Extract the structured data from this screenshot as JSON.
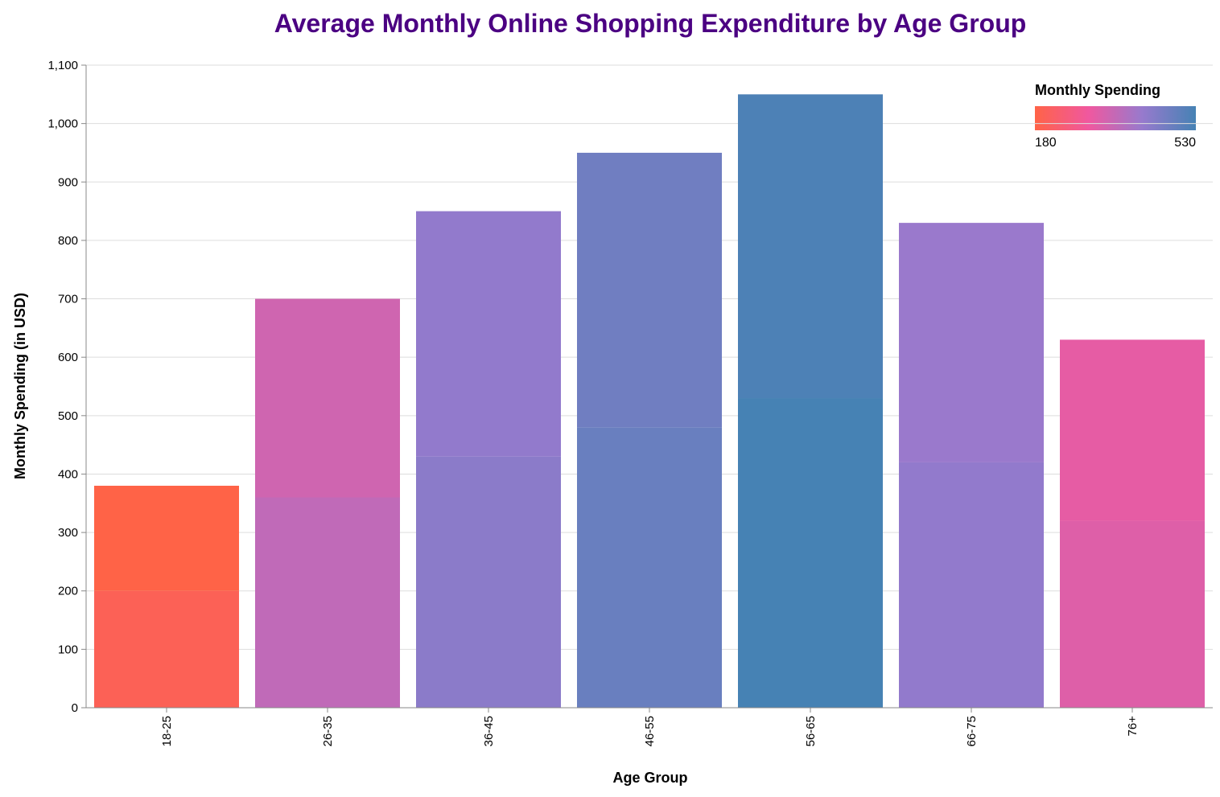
{
  "chart_data": {
    "type": "stacked_bar",
    "title": "Average Monthly Online Shopping Expenditure by Age Group",
    "x_label": "Age Group",
    "y_label": "Monthly Spending (in USD)",
    "categories": [
      "18-25",
      "26-35",
      "36-45",
      "46-55",
      "56-65",
      "66-75",
      "76+"
    ],
    "series": [
      {
        "values": [
          200,
          360,
          430,
          480,
          530,
          420,
          320
        ]
      },
      {
        "values": [
          180,
          340,
          420,
          470,
          520,
          410,
          310
        ]
      }
    ],
    "ylim": [
      0,
      1100
    ],
    "yticks": [
      0,
      100,
      200,
      300,
      400,
      500,
      600,
      700,
      800,
      900,
      {
        "value": 1000,
        "label": "1,000"
      },
      {
        "value": 1100,
        "label": "1,100"
      }
    ],
    "grid": true,
    "color_scale": {
      "title": "Monthly Spending",
      "domain": [
        180,
        530
      ],
      "range": [
        "#ff6347",
        "#f0589f",
        "#977acd",
        "#4682b4"
      ],
      "ticks": [
        180,
        530
      ]
    },
    "legend_position": "top-right"
  }
}
